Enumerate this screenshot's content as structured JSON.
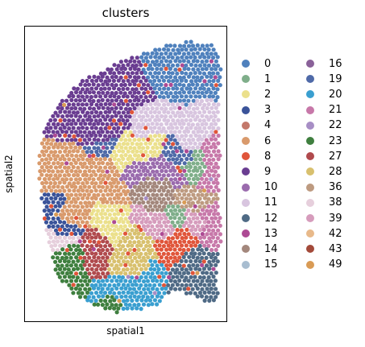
{
  "chart_data": {
    "type": "scatter",
    "title": "clusters",
    "xlabel": "spatial1",
    "ylabel": "spatial2",
    "xticks": [],
    "yticks": [],
    "legend_position": "right",
    "legend_columns": 2,
    "categories": [
      {
        "name": "0",
        "color": "#4f81bd"
      },
      {
        "name": "1",
        "color": "#7fae8a"
      },
      {
        "name": "2",
        "color": "#ebe08c"
      },
      {
        "name": "3",
        "color": "#3a5399"
      },
      {
        "name": "4",
        "color": "#c3786a"
      },
      {
        "name": "6",
        "color": "#d99a6c"
      },
      {
        "name": "8",
        "color": "#e0553a"
      },
      {
        "name": "9",
        "color": "#6a3d91"
      },
      {
        "name": "10",
        "color": "#9a6bad"
      },
      {
        "name": "11",
        "color": "#d8c5df"
      },
      {
        "name": "12",
        "color": "#4f6a85"
      },
      {
        "name": "13",
        "color": "#ad4a94"
      },
      {
        "name": "14",
        "color": "#a3877c"
      },
      {
        "name": "15",
        "color": "#a8bdd0"
      },
      {
        "name": "16",
        "color": "#8a6199"
      },
      {
        "name": "19",
        "color": "#4f6aa8"
      },
      {
        "name": "20",
        "color": "#3a9fd0"
      },
      {
        "name": "21",
        "color": "#c778a9"
      },
      {
        "name": "22",
        "color": "#a78ec5"
      },
      {
        "name": "23",
        "color": "#3f7f3f"
      },
      {
        "name": "27",
        "color": "#b04a4d"
      },
      {
        "name": "28",
        "color": "#d8c06e"
      },
      {
        "name": "36",
        "color": "#bd9a80"
      },
      {
        "name": "38",
        "color": "#e6cfdc"
      },
      {
        "name": "39",
        "color": "#d69cbc"
      },
      {
        "name": "42",
        "color": "#e8b98a"
      },
      {
        "name": "43",
        "color": "#a34a3a"
      },
      {
        "name": "49",
        "color": "#d99b55"
      }
    ]
  }
}
